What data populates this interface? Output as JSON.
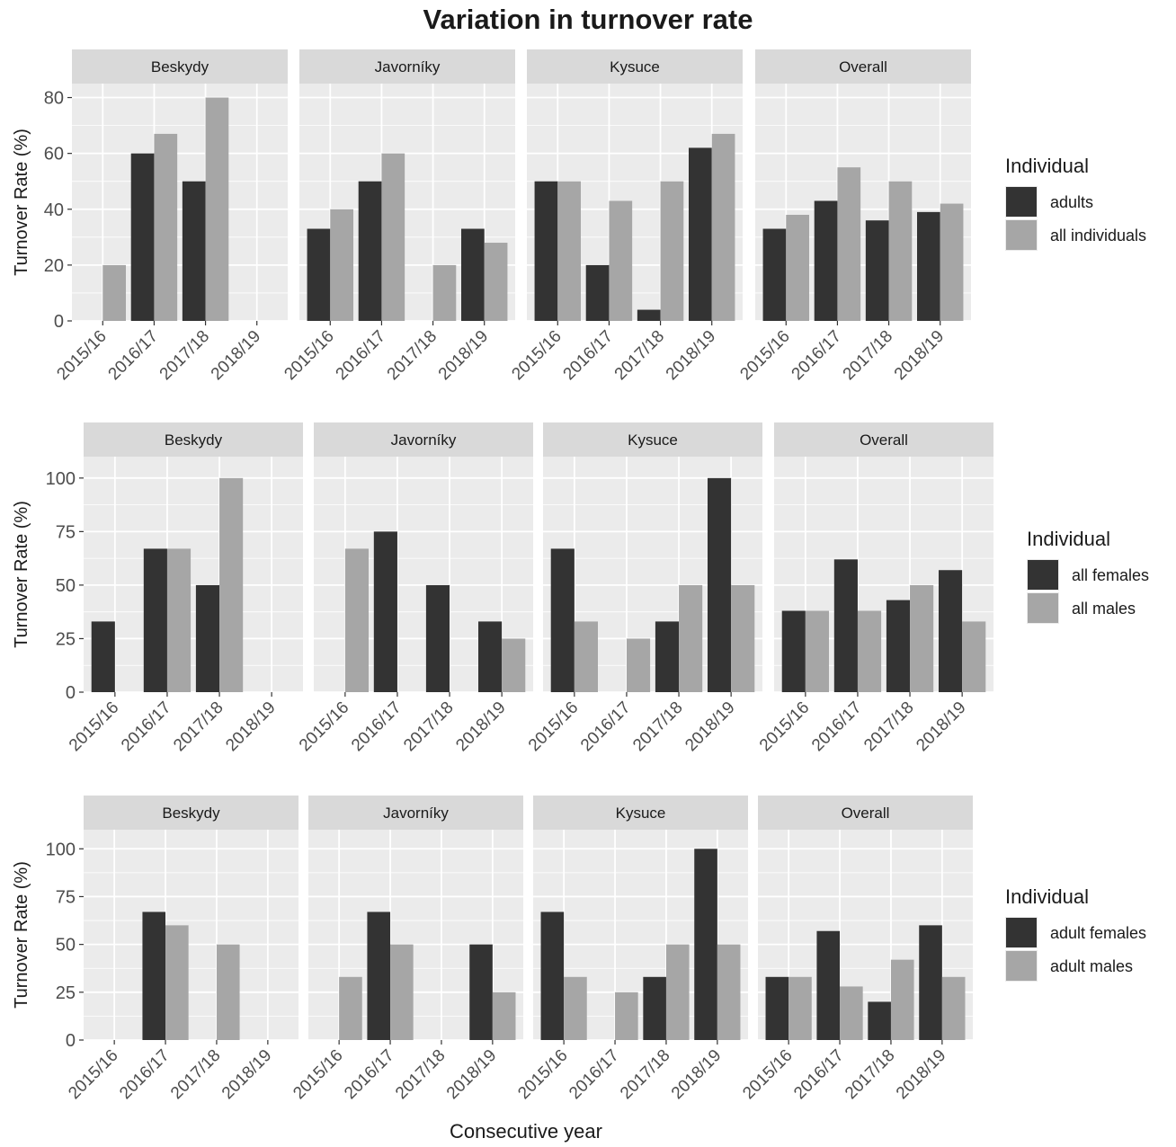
{
  "title": "Variation in turnover rate",
  "xlabel": "Consecutive year",
  "colors": {
    "dark": "#333333",
    "light": "#a6a6a6",
    "panel_bg": "#ebebeb",
    "strip_bg": "#d9d9d9",
    "grid": "#ffffff"
  },
  "chart_data": [
    {
      "type": "bar",
      "ylabel": "Turnover Rate (%)",
      "ylim": [
        0,
        85
      ],
      "yticks": [
        0,
        20,
        40,
        60,
        80
      ],
      "categories": [
        "2015/16",
        "2016/17",
        "2017/18",
        "2018/19"
      ],
      "legend": {
        "title": "Individual",
        "entries": [
          "adults",
          "all individuals"
        ],
        "position": "right"
      },
      "panels": [
        {
          "name": "Beskydy",
          "series": [
            {
              "name": "adults",
              "values": [
                0,
                60,
                50,
                0
              ]
            },
            {
              "name": "all individuals",
              "values": [
                20,
                67,
                80,
                0
              ]
            }
          ]
        },
        {
          "name": "Javorníky",
          "series": [
            {
              "name": "adults",
              "values": [
                33,
                50,
                0,
                33
              ]
            },
            {
              "name": "all individuals",
              "values": [
                40,
                60,
                20,
                28
              ]
            }
          ]
        },
        {
          "name": "Kysuce",
          "series": [
            {
              "name": "adults",
              "values": [
                50,
                20,
                4,
                62
              ]
            },
            {
              "name": "all individuals",
              "values": [
                50,
                43,
                50,
                67
              ]
            }
          ]
        },
        {
          "name": "Overall",
          "series": [
            {
              "name": "adults",
              "values": [
                33,
                43,
                36,
                39
              ]
            },
            {
              "name": "all individuals",
              "values": [
                38,
                55,
                50,
                42
              ]
            }
          ]
        }
      ]
    },
    {
      "type": "bar",
      "ylabel": "Turnover Rate (%)",
      "ylim": [
        0,
        110
      ],
      "yticks": [
        0,
        25,
        50,
        75,
        100
      ],
      "categories": [
        "2015/16",
        "2016/17",
        "2017/18",
        "2018/19"
      ],
      "legend": {
        "title": "Individual",
        "entries": [
          "all females",
          "all males"
        ],
        "position": "right"
      },
      "panels": [
        {
          "name": "Beskydy",
          "series": [
            {
              "name": "all females",
              "values": [
                33,
                67,
                50,
                0
              ]
            },
            {
              "name": "all males",
              "values": [
                0,
                67,
                100,
                0
              ]
            }
          ]
        },
        {
          "name": "Javorníky",
          "series": [
            {
              "name": "all females",
              "values": [
                0,
                75,
                50,
                33
              ]
            },
            {
              "name": "all males",
              "values": [
                67,
                0,
                0,
                25
              ]
            }
          ]
        },
        {
          "name": "Kysuce",
          "series": [
            {
              "name": "all females",
              "values": [
                67,
                0,
                33,
                100
              ]
            },
            {
              "name": "all males",
              "values": [
                33,
                25,
                50,
                50
              ]
            }
          ]
        },
        {
          "name": "Overall",
          "series": [
            {
              "name": "all females",
              "values": [
                38,
                62,
                43,
                57
              ]
            },
            {
              "name": "all males",
              "values": [
                38,
                38,
                50,
                33
              ]
            }
          ]
        }
      ]
    },
    {
      "type": "bar",
      "ylabel": "Turnover Rate (%)",
      "ylim": [
        0,
        110
      ],
      "yticks": [
        0,
        25,
        50,
        75,
        100
      ],
      "categories": [
        "2015/16",
        "2016/17",
        "2017/18",
        "2018/19"
      ],
      "legend": {
        "title": "Individual",
        "entries": [
          "adult females",
          "adult males"
        ],
        "position": "right"
      },
      "panels": [
        {
          "name": "Beskydy",
          "series": [
            {
              "name": "adult females",
              "values": [
                0,
                67,
                0,
                0
              ]
            },
            {
              "name": "adult males",
              "values": [
                0,
                60,
                50,
                0
              ]
            }
          ]
        },
        {
          "name": "Javorníky",
          "series": [
            {
              "name": "adult females",
              "values": [
                0,
                67,
                0,
                50
              ]
            },
            {
              "name": "adult males",
              "values": [
                33,
                50,
                0,
                25
              ]
            }
          ]
        },
        {
          "name": "Kysuce",
          "series": [
            {
              "name": "adult females",
              "values": [
                67,
                0,
                33,
                100
              ]
            },
            {
              "name": "adult males",
              "values": [
                33,
                25,
                50,
                50
              ]
            }
          ]
        },
        {
          "name": "Overall",
          "series": [
            {
              "name": "adult females",
              "values": [
                33,
                57,
                20,
                60
              ]
            },
            {
              "name": "adult males",
              "values": [
                33,
                28,
                42,
                33
              ]
            }
          ]
        }
      ]
    }
  ]
}
